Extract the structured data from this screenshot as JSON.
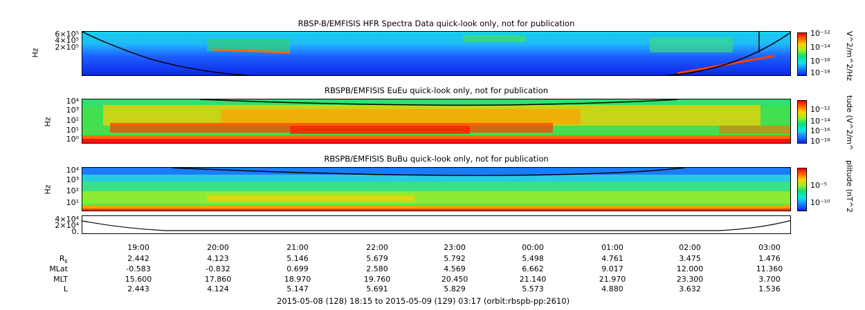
{
  "chart_data": [
    {
      "type": "heatmap",
      "title": "RBSP-B/EMFISIS  HFR Spectra Data quick-look only, not for publication",
      "ylabel": "Hz",
      "yticks": [
        "6×10⁵",
        "4×10⁵",
        "2×10⁵"
      ],
      "colorbar_label": "V^2/m^2/Hz",
      "colorbar_ticks": [
        "10⁻¹²",
        "10⁻¹⁴",
        "10⁻¹⁶",
        "10⁻¹⁸"
      ]
    },
    {
      "type": "heatmap",
      "title": "RBSPB/EMFISIS  EuEu quick-look only, not for publication",
      "ylabel": "Hz",
      "yticks": [
        "10⁴",
        "10³",
        "10²",
        "10¹",
        "10⁰"
      ],
      "colorbar_label": "tude (V^2/m^",
      "colorbar_ticks": [
        "10⁻¹²",
        "10⁻¹⁴",
        "10⁻¹⁶",
        "10⁻¹⁸"
      ]
    },
    {
      "type": "heatmap",
      "title": "RBSPB/EMFISIS  BuBu quick-look only, not for publication",
      "ylabel": "Hz",
      "yticks": [
        "10⁴",
        "10³",
        "10²",
        "10¹"
      ],
      "colorbar_label": "plitude (nT^2",
      "colorbar_ticks": [
        "10⁻⁵",
        "10⁻¹⁰"
      ]
    },
    {
      "type": "line",
      "yticks": [
        "4×10⁴",
        "2×10⁴",
        "0."
      ]
    }
  ],
  "xaxis": {
    "ticks": [
      "19:00",
      "20:00",
      "21:00",
      "22:00",
      "23:00",
      "00:00",
      "01:00",
      "02:00",
      "03:00"
    ]
  },
  "ephemeris": {
    "rows": [
      {
        "label": "R_E",
        "values": [
          "2.442",
          "4.123",
          "5.146",
          "5.679",
          "5.792",
          "5.498",
          "4.761",
          "3.475",
          "1.476"
        ]
      },
      {
        "label": "MLat",
        "values": [
          "-0.583",
          "-0.832",
          "0.699",
          "2.580",
          "4.569",
          "6.662",
          "9.017",
          "12.000",
          "11.360"
        ]
      },
      {
        "label": "MLT",
        "values": [
          "15.600",
          "17.860",
          "18.970",
          "19.760",
          "20.450",
          "21.140",
          "21.970",
          "23.300",
          "3.700"
        ]
      },
      {
        "label": "L",
        "values": [
          "2.443",
          "4.124",
          "5.147",
          "5.691",
          "5.829",
          "5.573",
          "4.880",
          "3.632",
          "1.536"
        ]
      }
    ]
  },
  "footer": "2015-05-08 (128) 18:15 to 2015-05-09 (129) 03:17 (orbit:rbspb-pp:2610)"
}
